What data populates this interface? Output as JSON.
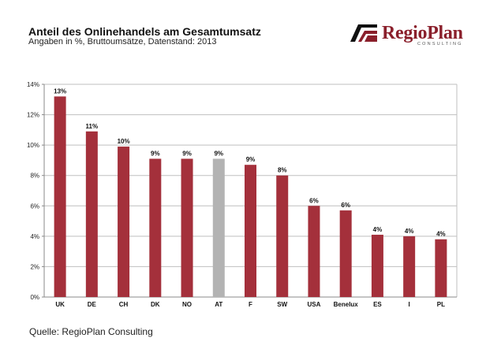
{
  "header": {
    "title": "Anteil des Onlinehandels am Gesamtumsatz",
    "subtitle": "Angaben in %, Bruttoumsätze, Datenstand: 2013"
  },
  "logo": {
    "name": "RegioPlan",
    "tagline": "CONSULTING"
  },
  "footer": {
    "source": "Quelle: RegioPlan Consulting"
  },
  "colors": {
    "bar": "#a4303b",
    "highlight": "#b3b3b3",
    "grid": "#bfbfbf"
  },
  "chart_data": {
    "type": "bar",
    "title": "",
    "xlabel": "",
    "ylabel": "",
    "categories": [
      "UK",
      "DE",
      "CH",
      "DK",
      "NO",
      "AT",
      "F",
      "SW",
      "USA",
      "Benelux",
      "ES",
      "I",
      "PL"
    ],
    "values": [
      13.2,
      10.9,
      9.9,
      9.1,
      9.1,
      9.1,
      8.7,
      8.0,
      6.0,
      5.7,
      4.1,
      4.0,
      3.8
    ],
    "data_labels": [
      "13%",
      "11%",
      "10%",
      "9%",
      "9%",
      "9%",
      "9%",
      "8%",
      "6%",
      "6%",
      "4%",
      "4%",
      "4%"
    ],
    "highlight_category": "AT",
    "ylim": [
      0,
      14
    ],
    "yticks": [
      0,
      2,
      4,
      6,
      8,
      10,
      12,
      14
    ],
    "ytick_labels": [
      "0%",
      "2%",
      "4%",
      "6%",
      "8%",
      "10%",
      "12%",
      "14%"
    ],
    "grid": true,
    "legend": "none"
  }
}
